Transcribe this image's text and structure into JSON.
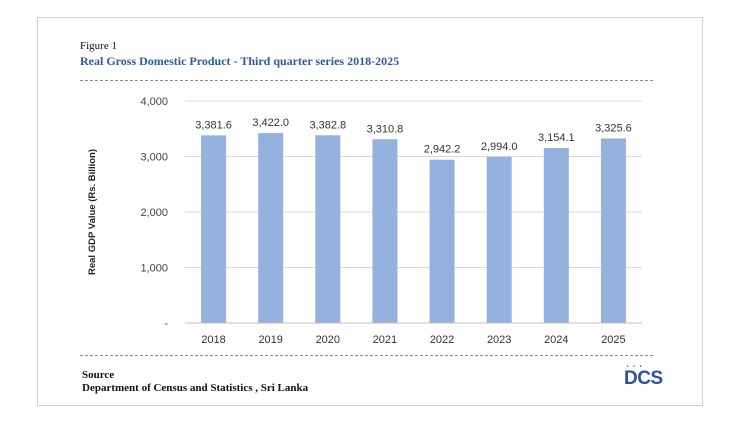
{
  "figure_label": "Figure 1",
  "figure_title": "Real Gross Domestic Product - Third quarter series  2018-2025",
  "source_label": "Source",
  "source_text": "Department of Census and Statistics , Sri Lanka",
  "logo_text": "DCS",
  "logo_dots": "• • •",
  "colors": {
    "bar": "#95b1de",
    "title": "#2e5b9e",
    "grid": "#d9d9d9",
    "logo": "#2e4f9c"
  },
  "chart_data": {
    "type": "bar",
    "title": "Real Gross Domestic Product - Third quarter series  2018-2025",
    "xlabel": "",
    "ylabel": "Real GDP Value (Rs. Billion)",
    "categories": [
      "2018",
      "2019",
      "2020",
      "2021",
      "2022",
      "2023",
      "2024",
      "2025"
    ],
    "values": [
      3381.6,
      3422.0,
      3382.8,
      3310.8,
      2942.2,
      2994.0,
      3154.1,
      3325.6
    ],
    "value_labels": [
      "3,381.6",
      "3,422.0",
      "3,382.8",
      "3,310.8",
      "2,942.2",
      "2,994.0",
      "3,154.1",
      "3,325.6"
    ],
    "ylim": [
      0,
      4000
    ],
    "yticks": [
      0,
      1000,
      2000,
      3000,
      4000
    ],
    "ytick_labels": [
      "-",
      "1,000",
      "2,000",
      "3,000",
      "4,000"
    ],
    "grid": true
  }
}
